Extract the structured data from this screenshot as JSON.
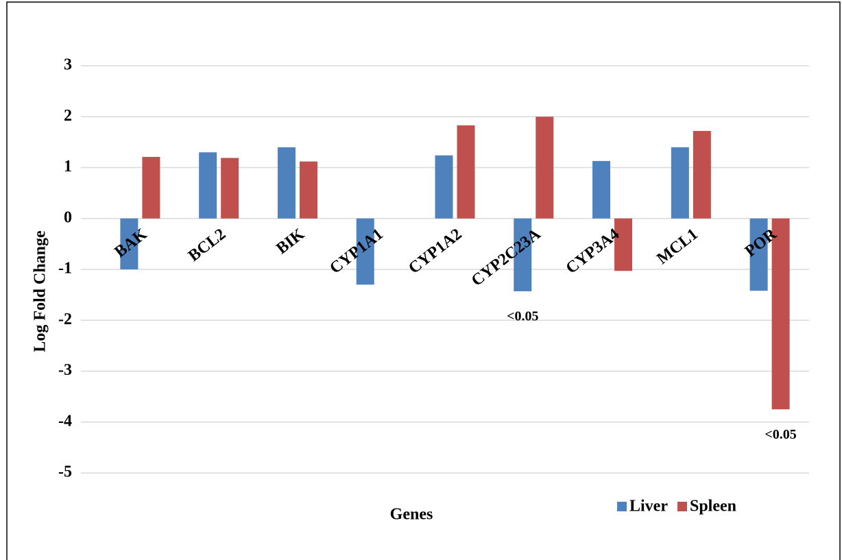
{
  "chart_data": {
    "type": "bar",
    "x_label": "Genes",
    "y_label": "Log Fold Change",
    "categories": [
      "BAK",
      "BCL2",
      "BIK",
      "CYP1A1",
      "CYP1A2",
      "CYP2C23A",
      "CYP3A4",
      "MCL1",
      "POR"
    ],
    "series": [
      {
        "name": "Liver",
        "color": "#4f81bd",
        "values": [
          -1.0,
          1.3,
          1.4,
          -1.3,
          1.24,
          -1.43,
          1.13,
          1.4,
          -1.42
        ]
      },
      {
        "name": "Spleen",
        "color": "#c0504d",
        "values": [
          1.21,
          1.19,
          1.12,
          null,
          1.83,
          2.0,
          -1.03,
          1.72,
          -3.75
        ]
      }
    ],
    "annotations": [
      {
        "text": "<0.05",
        "category": "CYP2C23A",
        "series": "Liver"
      },
      {
        "text": "<0.05",
        "category": "POR",
        "series": "Spleen"
      }
    ],
    "ylim": [
      -5,
      3
    ],
    "yticks": [
      -5,
      -4,
      -3,
      -2,
      -1,
      0,
      1,
      2,
      3
    ],
    "grid": true,
    "legend": "bottom-right"
  }
}
